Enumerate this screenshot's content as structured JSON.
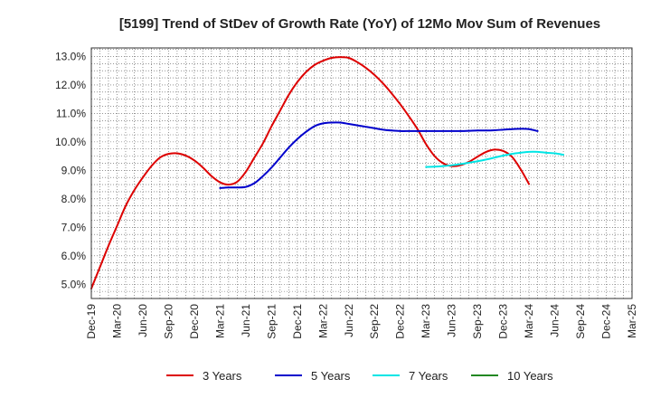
{
  "chart_data": {
    "type": "line",
    "title": "[5199]  Trend of StDev of Growth Rate (YoY) of 12Mo Mov Sum of Revenues",
    "xlabel": "",
    "ylabel": "",
    "ylim": [
      4.5,
      13.3
    ],
    "yticks": [
      5.0,
      6.0,
      7.0,
      8.0,
      9.0,
      10.0,
      11.0,
      12.0,
      13.0
    ],
    "ytick_labels": [
      "5.0%",
      "6.0%",
      "7.0%",
      "8.0%",
      "9.0%",
      "10.0%",
      "11.0%",
      "12.0%",
      "13.0%"
    ],
    "xtick_labels": [
      "Dec-19",
      "Mar-20",
      "Jun-20",
      "Sep-20",
      "Dec-20",
      "Mar-21",
      "Jun-21",
      "Sep-21",
      "Dec-21",
      "Mar-22",
      "Jun-22",
      "Sep-22",
      "Dec-22",
      "Mar-23",
      "Jun-23",
      "Sep-23",
      "Dec-23",
      "Mar-24",
      "Jun-24",
      "Sep-24",
      "Dec-24",
      "Mar-25"
    ],
    "grid": true,
    "legend_position": "bottom",
    "series": [
      {
        "name": "3 Years",
        "color": "#dd0000",
        "start_index": 0,
        "values": [
          4.85,
          5.6,
          6.35,
          7.05,
          7.75,
          8.3,
          8.75,
          9.15,
          9.45,
          9.58,
          9.6,
          9.52,
          9.35,
          9.1,
          8.8,
          8.58,
          8.5,
          8.6,
          8.95,
          9.45,
          9.95,
          10.55,
          11.1,
          11.65,
          12.1,
          12.45,
          12.7,
          12.85,
          12.95,
          12.98,
          12.95,
          12.8,
          12.6,
          12.35,
          12.05,
          11.7,
          11.32,
          10.9,
          10.45,
          9.92,
          9.5,
          9.25,
          9.15,
          9.18,
          9.3,
          9.48,
          9.65,
          9.73,
          9.68,
          9.48,
          9.05,
          8.52
        ]
      },
      {
        "name": "5 Years",
        "color": "#0000cc",
        "start_index": 15,
        "values": [
          8.38,
          8.4,
          8.4,
          8.42,
          8.55,
          8.8,
          9.1,
          9.45,
          9.8,
          10.1,
          10.35,
          10.55,
          10.65,
          10.68,
          10.68,
          10.63,
          10.58,
          10.53,
          10.48,
          10.43,
          10.4,
          10.38,
          10.38,
          10.38,
          10.38,
          10.38,
          10.38,
          10.38,
          10.38,
          10.39,
          10.4,
          10.4,
          10.41,
          10.43,
          10.45,
          10.46,
          10.45,
          10.38
        ]
      },
      {
        "name": "7 Years",
        "color": "#00e5e5",
        "start_index": 39,
        "values": [
          9.12,
          9.13,
          9.15,
          9.18,
          9.22,
          9.27,
          9.32,
          9.38,
          9.45,
          9.52,
          9.58,
          9.62,
          9.65,
          9.65,
          9.62,
          9.6,
          9.55
        ]
      },
      {
        "name": "10 Years",
        "color": "#228822",
        "start_index": 0,
        "values": []
      }
    ]
  }
}
